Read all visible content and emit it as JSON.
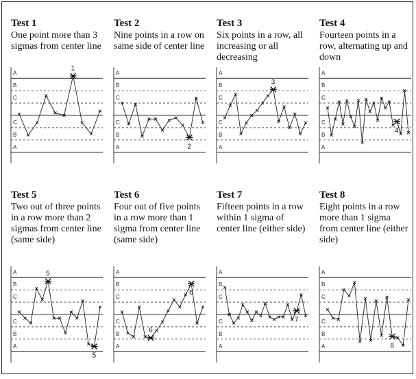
{
  "zone_labels": [
    "A",
    "B",
    "C",
    "C",
    "B",
    "A"
  ],
  "tests": [
    {
      "title": "Test 1",
      "desc": "One point more than 3 sigmas from center line",
      "values": [
        0.1,
        -1.6,
        -0.6,
        1.6,
        0.2,
        0,
        3.2,
        -0.6,
        -1.5,
        0.35
      ],
      "flagged": [
        6
      ],
      "annotation": "1",
      "ann_pos": "above"
    },
    {
      "title": "Test 2",
      "desc": "Nine points in a row on same side of center line",
      "values": [
        1.0,
        -0.7,
        0.9,
        -1.7,
        -0.3,
        -0.3,
        -1.2,
        -0.4,
        -0.2,
        -0.8,
        -1.8,
        1.4,
        -0.6
      ],
      "flagged": [
        10
      ],
      "annotation": "2",
      "ann_pos": "below"
    },
    {
      "title": "Test 3",
      "desc": "Six points in a row, all increasing or all decreasing",
      "values": [
        -0.2,
        0.8,
        1.7,
        -1.5,
        -0.6,
        0,
        0.4,
        1.0,
        1.6,
        2.1,
        -0.5,
        0.7,
        -1.0,
        0.1,
        -1.5,
        -0.6
      ],
      "flagged": [
        9
      ],
      "annotation": "3",
      "ann_pos": "above"
    },
    {
      "title": "Test 4",
      "desc": "Fourteen points in a row, alternating up and down",
      "values": [
        0.6,
        -1.6,
        -0.3,
        1.1,
        -0.7,
        1.2,
        -0.1,
        -0.9,
        1.2,
        -2.2,
        1.3,
        0.3,
        1.0,
        -0.4,
        1.4,
        0.6,
        1.1,
        -0.8,
        -0.5,
        -1.5,
        2.0,
        -1.4
      ],
      "flagged": [
        18
      ],
      "annotation": "4",
      "ann_pos": "below"
    },
    {
      "title": "Test 5",
      "desc": "Two out of three points in a row more than 2 sigmas from center line (same side)",
      "values": [
        0.2,
        -0.3,
        -0.7,
        2.1,
        1.2,
        2.7,
        -0.3,
        -0.3,
        -1.5,
        0.2,
        -0.3,
        1.1,
        -2.4,
        -2.6,
        0.6
      ],
      "flagged": [
        5,
        13
      ],
      "annotation": "5",
      "ann_pos": "both"
    },
    {
      "title": "Test 6",
      "desc": "Four out of five points in a row more than 1 sigma from center line (same side)",
      "values": [
        0.2,
        -1.5,
        -1.8,
        0.6,
        -1.8,
        -1.9,
        -1.3,
        -0.6,
        0.3,
        1.2,
        0.6,
        1.6,
        2.5,
        -0.7,
        0.6
      ],
      "flagged": [
        5,
        12
      ],
      "annotation": "6",
      "ann_pos": "both"
    },
    {
      "title": "Test 7",
      "desc": "Fifteen points in a row within 1 sigma of center line (either side)",
      "values": [
        2.2,
        0,
        -0.7,
        -0.3,
        0.8,
        0.2,
        -0.5,
        0.2,
        -0.1,
        0.9,
        -0.2,
        -0.4,
        -0.2,
        -0.2,
        0.8,
        -0.4,
        0.3,
        1.6,
        -0.1
      ],
      "flagged": [
        16
      ],
      "annotation": "7",
      "ann_pos": "below"
    },
    {
      "title": "Test 8",
      "desc": "Eight points in a row more than 1 sigma from center line (either side)",
      "values": [
        0.4,
        -0.3,
        -0.4,
        2.0,
        1.5,
        2.6,
        -2.2,
        1.3,
        -2.1,
        1.1,
        -1.7,
        1.4,
        -1.8,
        -1.9,
        -2.5,
        1.2
      ],
      "flagged": [
        12
      ],
      "annotation": "8",
      "ann_pos": "below"
    }
  ]
}
